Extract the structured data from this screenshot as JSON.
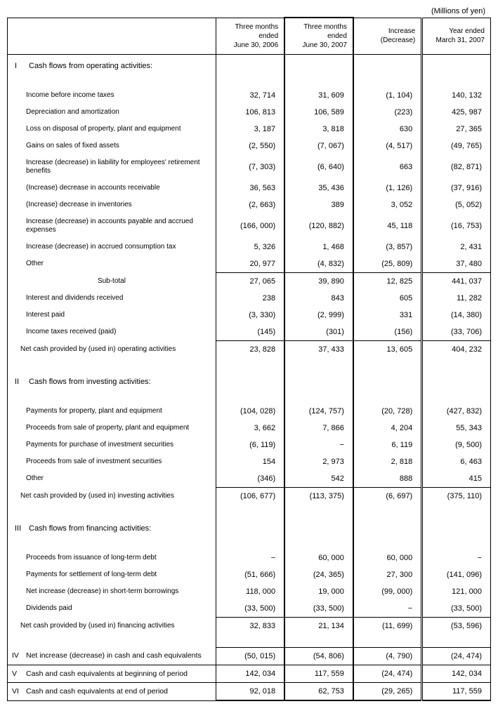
{
  "unit_label": "(Millions of yen)",
  "headers": {
    "label": "",
    "col1": "Three months ended\nJune 30, 2006",
    "col2": "Three months ended\nJune 30, 2007",
    "col3": "Increase\n(Decrease)",
    "col4": "Year ended\nMarch 31, 2007"
  },
  "sections": [
    {
      "roman": "I",
      "title": "Cash flows from operating activities:",
      "rows": [
        {
          "label": "Income before income taxes",
          "v": [
            "32, 714",
            "31, 609",
            "(1, 104)",
            "140, 132"
          ]
        },
        {
          "label": "Depreciation and amortization",
          "v": [
            "106, 813",
            "106, 589",
            "(223)",
            "425, 987"
          ]
        },
        {
          "label": "Loss on disposal of property, plant and equipment",
          "v": [
            "3, 187",
            "3, 818",
            "630",
            "27, 365"
          ]
        },
        {
          "label": "Gains on sales of fixed assets",
          "v": [
            "(2, 550)",
            "(7, 067)",
            "(4, 517)",
            "(49, 765)"
          ]
        },
        {
          "label": "Increase (decrease) in liability for employees' retirement benefits",
          "v": [
            "(7, 303)",
            "(6, 640)",
            "663",
            "(82, 871)"
          ]
        },
        {
          "label": "(Increase) decrease in accounts receivable",
          "v": [
            "36, 563",
            "35, 436",
            "(1, 126)",
            "(37, 916)"
          ]
        },
        {
          "label": "(Increase) decrease in inventories",
          "v": [
            "(2, 663)",
            "389",
            "3, 052",
            "(5, 052)"
          ]
        },
        {
          "label": "Increase (decrease) in accounts payable and accrued expenses",
          "v": [
            "(166, 000)",
            "(120, 882)",
            "45, 118",
            "(16, 753)"
          ]
        },
        {
          "label": "Increase (decrease) in accrued consumption tax",
          "v": [
            "5, 326",
            "1, 468",
            "(3, 857)",
            "2, 431"
          ]
        },
        {
          "label": "Other",
          "v": [
            "20, 977",
            "(4, 832)",
            "(25, 809)",
            "37, 480"
          ]
        }
      ],
      "subtotal": {
        "label": "Sub-total",
        "v": [
          "27, 065",
          "39, 890",
          "12, 825",
          "441, 037"
        ]
      },
      "after_subtotal": [
        {
          "label": "Interest and dividends received",
          "v": [
            "238",
            "843",
            "605",
            "11, 282"
          ]
        },
        {
          "label": "Interest paid",
          "v": [
            "(3, 330)",
            "(2, 999)",
            "331",
            "(14, 380)"
          ]
        },
        {
          "label": "Income taxes received (paid)",
          "v": [
            "(145)",
            "(301)",
            "(156)",
            "(33, 706)"
          ]
        }
      ],
      "net": {
        "label": "Net cash provided by (used in) operating activities",
        "v": [
          "23, 828",
          "37, 433",
          "13, 605",
          "404, 232"
        ],
        "bordered": true
      }
    },
    {
      "roman": "II",
      "title": "Cash flows from investing activities:",
      "rows": [
        {
          "label": "Payments for property, plant and equipment",
          "v": [
            "(104, 028)",
            "(124, 757)",
            "(20, 728)",
            "(427, 832)"
          ]
        },
        {
          "label": "Proceeds from sale of property, plant and equipment",
          "v": [
            "3, 662",
            "7, 866",
            "4, 204",
            "55, 343"
          ]
        },
        {
          "label": "Payments for purchase of investment securities",
          "v": [
            "(6, 119)",
            "−",
            "6, 119",
            "(9, 500)"
          ]
        },
        {
          "label": "Proceeds from sale of investment securities",
          "v": [
            "154",
            "2, 973",
            "2, 818",
            "6, 463"
          ]
        },
        {
          "label": "Other",
          "v": [
            "(346)",
            "542",
            "888",
            "415"
          ]
        }
      ],
      "net": {
        "label": "Net cash provided by (used in) investing activities",
        "v": [
          "(106, 677)",
          "(113, 375)",
          "(6, 697)",
          "(375, 110)"
        ],
        "bordered": true
      }
    },
    {
      "roman": "III",
      "title": "Cash flows from financing activities:",
      "rows": [
        {
          "label": "Proceeds from issuance of long-term debt",
          "v": [
            "−",
            "60, 000",
            "60, 000",
            "−"
          ]
        },
        {
          "label": "Payments for settlement of long-term debt",
          "v": [
            "(51, 666)",
            "(24, 365)",
            "27, 300",
            "(141, 096)"
          ]
        },
        {
          "label": "Net increase (decrease) in short-term borrowings",
          "v": [
            "118, 000",
            "19, 000",
            "(99, 000)",
            "121, 000"
          ]
        },
        {
          "label": "Dividends paid",
          "v": [
            "(33, 500)",
            "(33, 500)",
            "−",
            "(33, 500)"
          ]
        }
      ],
      "net": {
        "label": "Net cash provided by (used in) financing activities",
        "v": [
          "32, 833",
          "21, 134",
          "(11, 699)",
          "(53, 596)"
        ],
        "bordered": true
      }
    }
  ],
  "finals": [
    {
      "roman": "IV",
      "label": "Net increase (decrease) in cash and cash equivalents",
      "v": [
        "(50, 015)",
        "(54, 806)",
        "(4, 790)",
        "(24, 474)"
      ]
    },
    {
      "roman": "V",
      "label": "Cash and cash equivalents at beginning of period",
      "v": [
        "142, 034",
        "117, 559",
        "(24, 474)",
        "142, 034"
      ]
    },
    {
      "roman": "VI",
      "label": "Cash and cash equivalents at end of period",
      "v": [
        "92, 018",
        "62, 753",
        "(29, 265)",
        "117, 559"
      ]
    }
  ]
}
